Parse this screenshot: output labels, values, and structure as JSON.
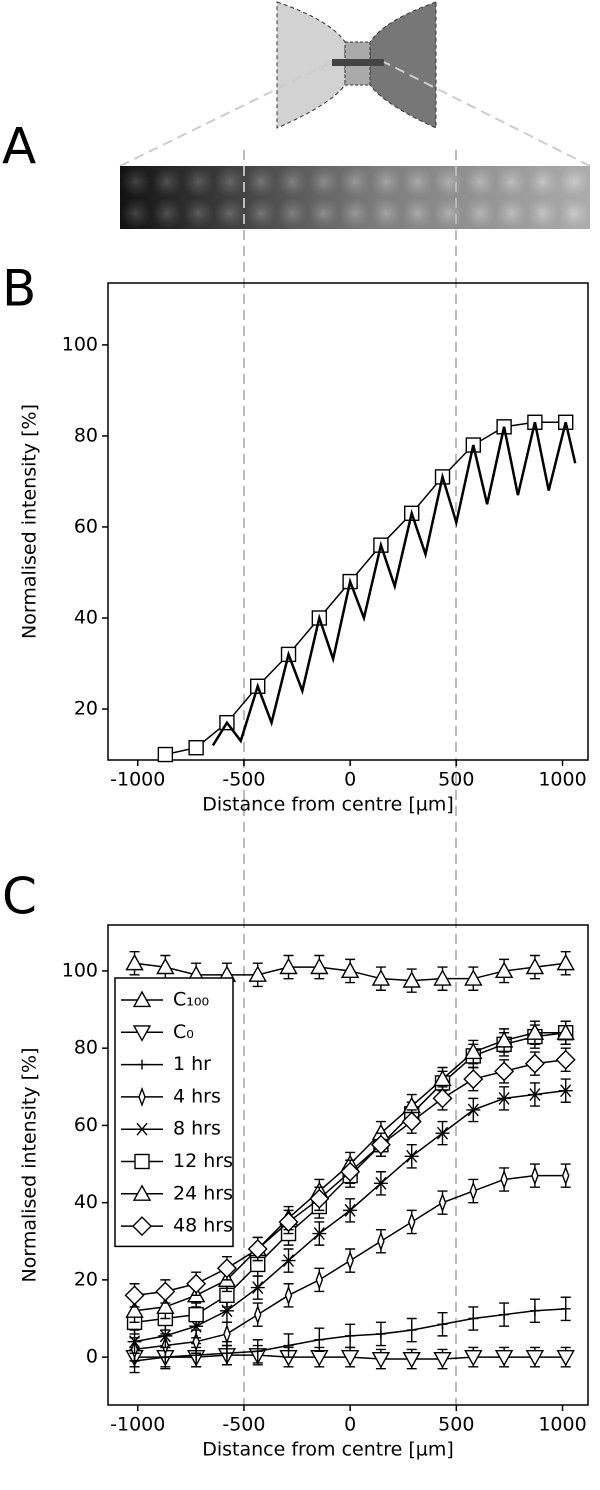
{
  "figure": {
    "panels": [
      "A",
      "B",
      "C"
    ]
  },
  "chart_data": [
    {
      "type": "line",
      "panel": "B",
      "xlabel": "Distance from centre [µm]",
      "ylabel": "Normalised intensity [%]",
      "xlim": [
        -1140,
        1120
      ],
      "ylim": [
        8.8,
        113.6
      ],
      "xticks": [
        -1000,
        -500,
        0,
        500,
        1000
      ],
      "yticks": [
        20,
        40,
        60,
        80,
        100
      ],
      "series": [
        {
          "color": "#000000",
          "marker": "square",
          "x": [
            -870,
            -725,
            -580,
            -435,
            -290,
            -145,
            0,
            145,
            290,
            435,
            580,
            725,
            870,
            1015
          ],
          "values": [
            10,
            11.5,
            17,
            25,
            32,
            40,
            48,
            56,
            63,
            71,
            78,
            82,
            83,
            83
          ]
        },
        {
          "color": "#000000",
          "marker": "none",
          "x": [
            -646,
            -580,
            -515,
            -435,
            -370,
            -290,
            -225,
            -145,
            -80,
            0,
            65,
            145,
            210,
            290,
            355,
            435,
            500,
            580,
            645,
            725,
            790,
            870,
            935,
            1015,
            1060
          ],
          "values": [
            12,
            17,
            13,
            25,
            17,
            32,
            24,
            40,
            31,
            48,
            40,
            56,
            47,
            63,
            54,
            71,
            61,
            78,
            65,
            82,
            67,
            83,
            68,
            83,
            74
          ]
        }
      ]
    },
    {
      "type": "line",
      "panel": "C",
      "xlabel": "Distance from centre [µm]",
      "ylabel": "Normalised intensity [%]",
      "xlim": [
        -1140,
        1120
      ],
      "ylim": [
        -12.4,
        111.9
      ],
      "xticks": [
        -1000,
        -500,
        0,
        500,
        1000
      ],
      "yticks": [
        0,
        20,
        40,
        60,
        80,
        100
      ],
      "legend": "upper left",
      "x": [
        -1015,
        -870,
        -725,
        -580,
        -435,
        -290,
        -145,
        0,
        145,
        290,
        435,
        580,
        725,
        870,
        1015
      ],
      "series": [
        {
          "name": "C₁₀₀",
          "color": "#000000",
          "marker": "triangle-up",
          "error": 3,
          "values": [
            102,
            101,
            99,
            99,
            99,
            101,
            101,
            100,
            98,
            97.5,
            98,
            98,
            100,
            101,
            102
          ]
        },
        {
          "name": "C₀",
          "color": "#000000",
          "marker": "triangle-down",
          "error": 2.5,
          "values": [
            0,
            0,
            0,
            0.5,
            0.5,
            0,
            0,
            0,
            -0.5,
            -0.5,
            -0.5,
            0,
            0,
            0,
            0
          ]
        },
        {
          "name": "1 hr",
          "color": "#000000",
          "marker": "plus",
          "error": 3,
          "values": [
            -1,
            0,
            0.5,
            1,
            1.5,
            3,
            4.5,
            5.5,
            6,
            7,
            8.5,
            10,
            11,
            12,
            12.5
          ]
        },
        {
          "name": "4 hrs",
          "color": "#000000",
          "marker": "thin-diamond",
          "error": 3,
          "values": [
            2,
            3,
            4,
            6,
            11,
            16,
            20,
            25,
            30,
            35,
            40,
            43,
            46,
            47,
            47
          ]
        },
        {
          "name": "8 hrs",
          "color": "#000000",
          "marker": "asterisk",
          "error": 3,
          "values": [
            4,
            5.5,
            8,
            12,
            18,
            25,
            32,
            38,
            45,
            52,
            58,
            64,
            67,
            68,
            69
          ]
        },
        {
          "name": "12 hrs",
          "color": "#000000",
          "marker": "square",
          "error": 3,
          "values": [
            9,
            10,
            11,
            16,
            24,
            32,
            39,
            47,
            55,
            63,
            71,
            78,
            81,
            83,
            84
          ]
        },
        {
          "name": "24 hrs",
          "color": "#000000",
          "marker": "triangle-up",
          "error": 3,
          "values": [
            12,
            13,
            16,
            20,
            28,
            36,
            43,
            50,
            58,
            65,
            72,
            79,
            82,
            84,
            84
          ]
        },
        {
          "name": "48 hrs",
          "color": "#000000",
          "marker": "diamond",
          "error": 3,
          "values": [
            16,
            17,
            19,
            23,
            28,
            35,
            41,
            48,
            55,
            61,
            67,
            72,
            74,
            76,
            77
          ]
        }
      ]
    }
  ]
}
